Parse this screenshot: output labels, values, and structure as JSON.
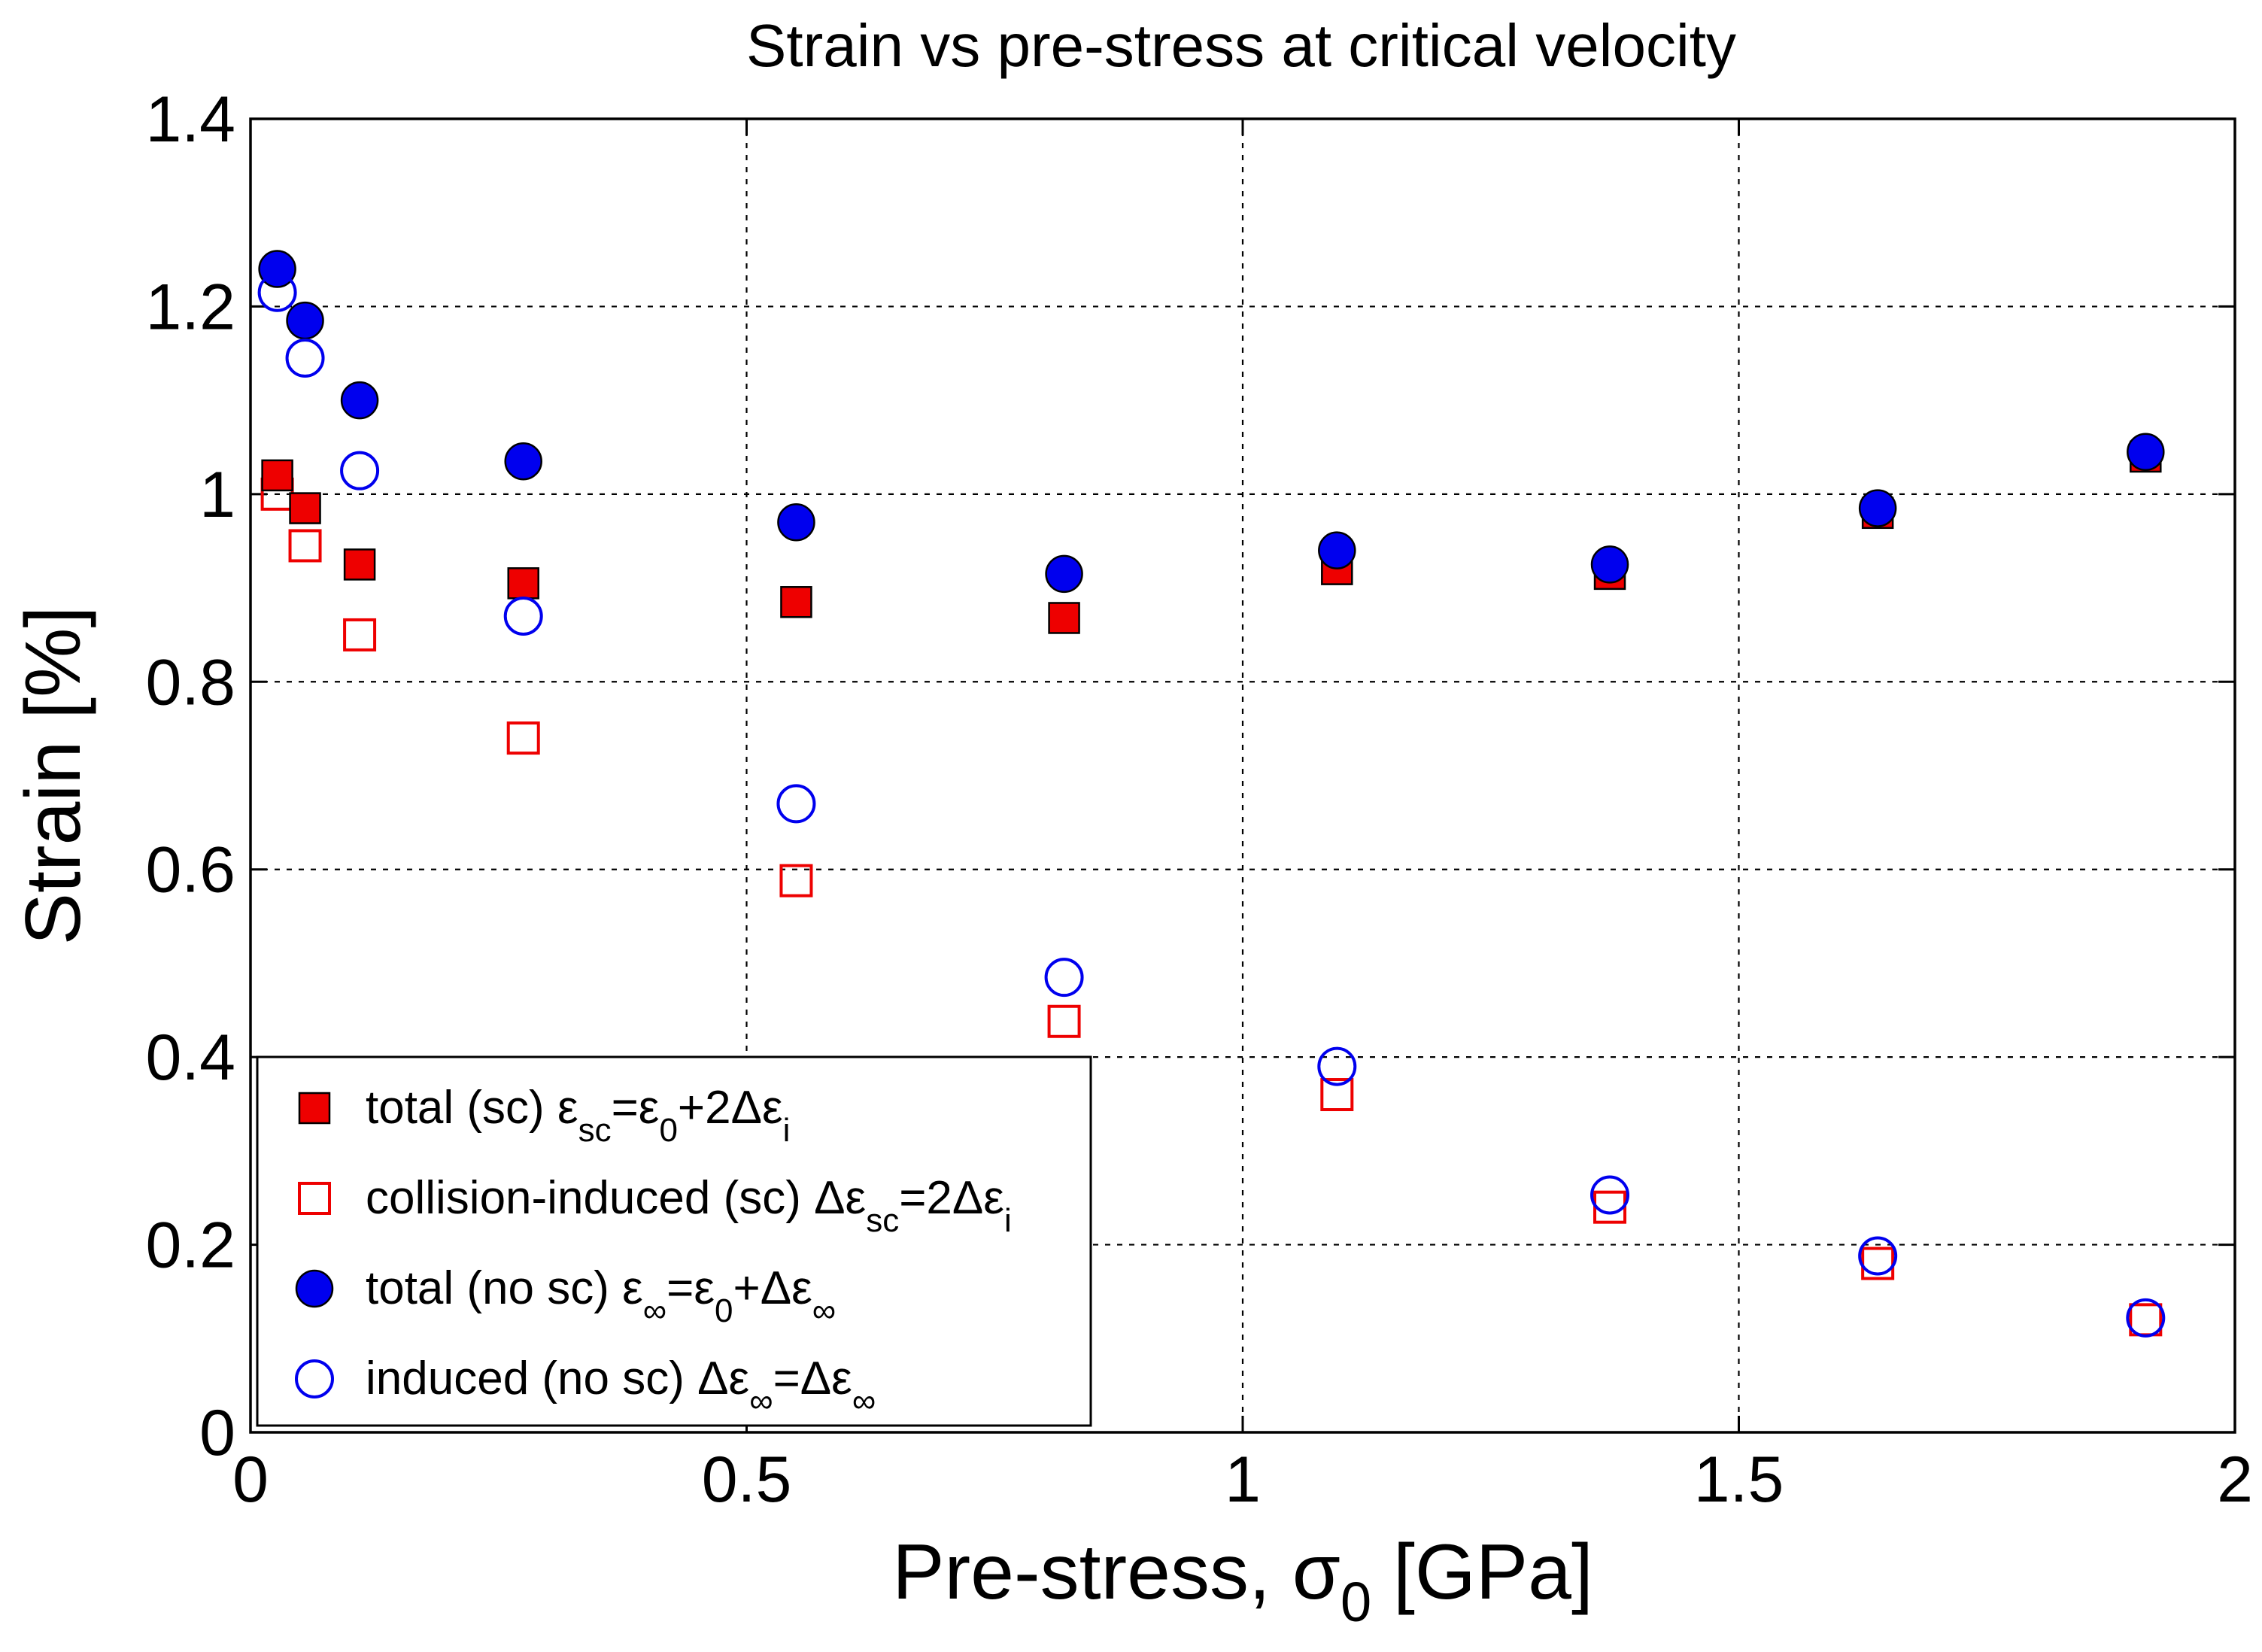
{
  "chart_data": {
    "type": "scatter",
    "title": "Strain vs pre-stress at critical velocity",
    "xlabel": {
      "main": "Pre-stress, ",
      "symbol": "σ",
      "sub": "0",
      "units": " [GPa]"
    },
    "ylabel": "Strain [%]",
    "xlim": [
      0,
      2
    ],
    "ylim": [
      0,
      1.4
    ],
    "xticks": [
      0,
      0.5,
      1,
      1.5,
      2
    ],
    "xtick_labels": [
      "0",
      "0.5",
      "1",
      "1.5",
      "2"
    ],
    "yticks": [
      0,
      0.2,
      0.4,
      0.6,
      0.8,
      1.0,
      1.2,
      1.4
    ],
    "ytick_labels": [
      "0",
      "0.2",
      "0.4",
      "0.6",
      "0.8",
      "1",
      "1.2",
      "1.4"
    ],
    "grid": true,
    "legend_position": "bottom-left",
    "x": [
      0.027,
      0.055,
      0.11,
      0.275,
      0.55,
      0.82,
      1.095,
      1.37,
      1.64,
      1.91
    ],
    "series": [
      {
        "name": "total (sc)",
        "marker": "square-filled",
        "color": "#ee0000",
        "legend": {
          "pre": "total (sc) ",
          "parts": [
            [
              "ε",
              ""
            ],
            [
              "sc",
              "sub"
            ],
            [
              "=ε",
              ""
            ],
            [
              "0",
              "sub"
            ],
            [
              "+2Δε",
              ""
            ],
            [
              "i",
              "sub"
            ]
          ]
        },
        "values": [
          1.02,
          0.985,
          0.925,
          0.905,
          0.885,
          0.868,
          0.92,
          0.915,
          0.98,
          1.04
        ]
      },
      {
        "name": "collision-induced (sc)",
        "marker": "square-open",
        "color": "#ee0000",
        "legend": {
          "pre": "collision-induced (sc) ",
          "parts": [
            [
              "Δε",
              ""
            ],
            [
              "sc",
              "sub"
            ],
            [
              "=2Δε",
              ""
            ],
            [
              "i",
              "sub"
            ]
          ]
        },
        "values": [
          1.0,
          0.945,
          0.85,
          0.74,
          0.588,
          0.438,
          0.36,
          0.24,
          0.18,
          0.12
        ]
      },
      {
        "name": "total (no sc)",
        "marker": "circle-filled",
        "color": "#0000ee",
        "legend": {
          "pre": "total (no sc) ",
          "parts": [
            [
              "ε",
              ""
            ],
            [
              "∞",
              "sub"
            ],
            [
              "=ε",
              ""
            ],
            [
              "0",
              "sub"
            ],
            [
              "+Δε",
              ""
            ],
            [
              "∞",
              "sub"
            ]
          ]
        },
        "values": [
          1.24,
          1.185,
          1.1,
          1.035,
          0.97,
          0.915,
          0.94,
          0.925,
          0.985,
          1.045
        ]
      },
      {
        "name": "induced (no sc)",
        "marker": "circle-open",
        "color": "#0000ee",
        "legend": {
          "pre": "induced (no sc) ",
          "parts": [
            [
              "Δε",
              ""
            ],
            [
              "∞",
              "sub"
            ],
            [
              "=Δε",
              ""
            ],
            [
              "∞",
              "sub"
            ]
          ]
        },
        "values": [
          1.215,
          1.145,
          1.025,
          0.87,
          0.67,
          0.485,
          0.39,
          0.253,
          0.188,
          0.122
        ]
      }
    ]
  }
}
